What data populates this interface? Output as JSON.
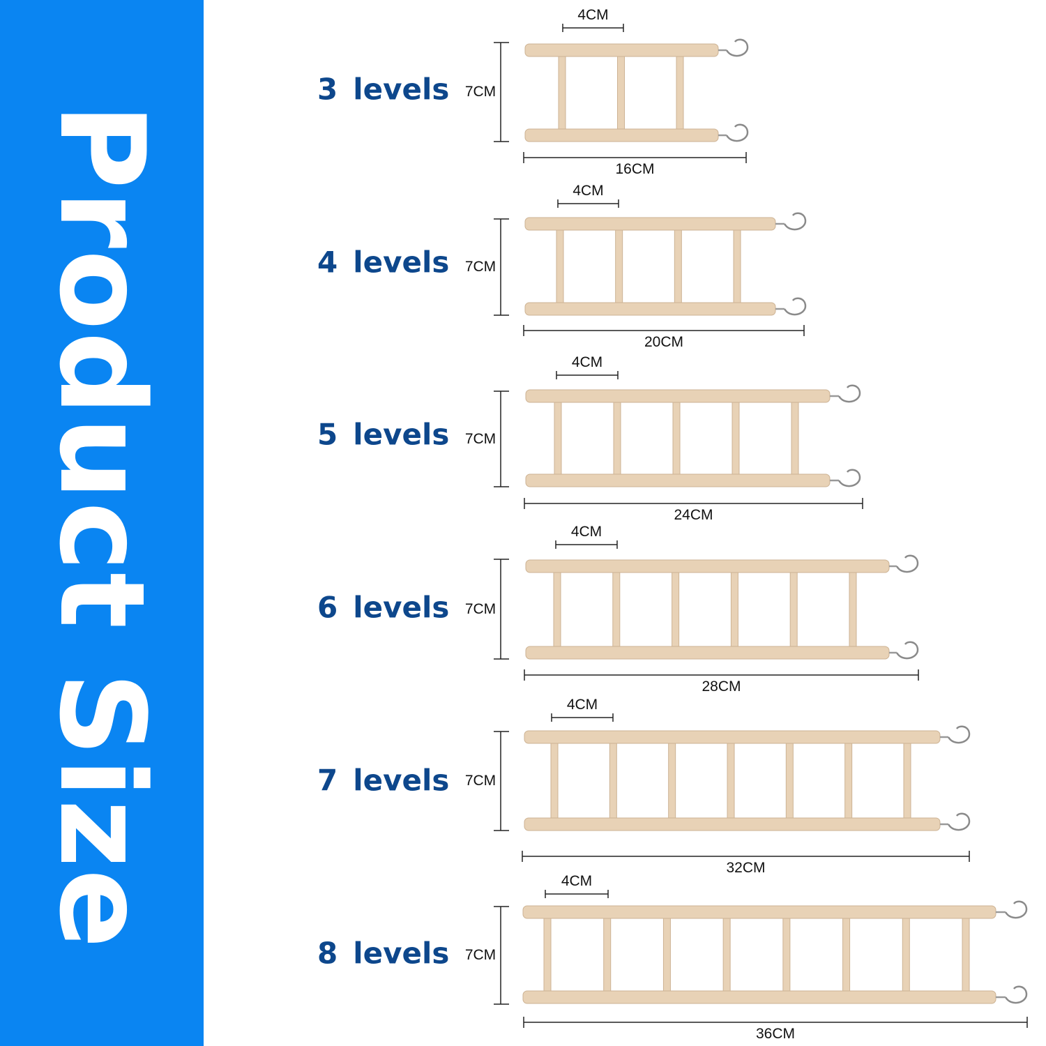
{
  "sidebar": {
    "title": "Product Size",
    "color": "#0a85f2"
  },
  "label_color": "#0d478c",
  "wood_color": "#e8d2b6",
  "rows": [
    {
      "levels": "3",
      "levels_word": "levels",
      "height": "7CM",
      "width": "16CM",
      "spacing": "4CM",
      "rungs": 3
    },
    {
      "levels": "4",
      "levels_word": "levels",
      "height": "7CM",
      "width": "20CM",
      "spacing": "4CM",
      "rungs": 4
    },
    {
      "levels": "5",
      "levels_word": "levels",
      "height": "7CM",
      "width": "24CM",
      "spacing": "4CM",
      "rungs": 5
    },
    {
      "levels": "6",
      "levels_word": "levels",
      "height": "7CM",
      "width": "28CM",
      "spacing": "4CM",
      "rungs": 6
    },
    {
      "levels": "7",
      "levels_word": "levels",
      "height": "7CM",
      "width": "32CM",
      "spacing": "4CM",
      "rungs": 7
    },
    {
      "levels": "8",
      "levels_word": "levels",
      "height": "7CM",
      "width": "36CM",
      "spacing": "4CM",
      "rungs": 8
    }
  ]
}
